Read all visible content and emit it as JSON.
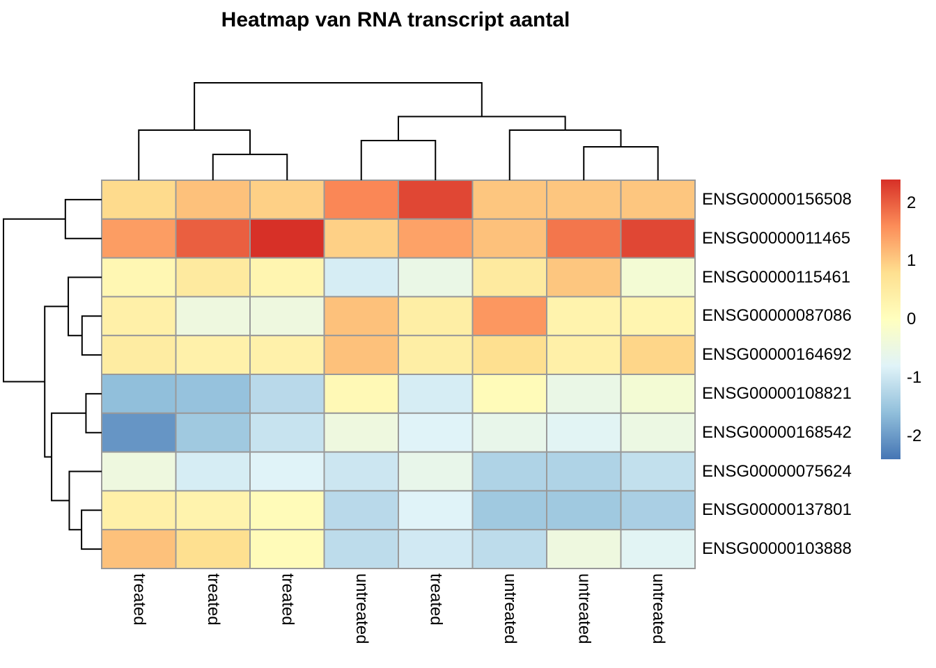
{
  "title": "Heatmap van RNA transcript aantal",
  "chart_data": {
    "type": "heatmap",
    "title": "Heatmap van RNA transcript aantal",
    "rows": [
      "ENSG00000156508",
      "ENSG00000011465",
      "ENSG00000115461",
      "ENSG00000087086",
      "ENSG00000164692",
      "ENSG00000108821",
      "ENSG00000168542",
      "ENSG00000075624",
      "ENSG00000137801",
      "ENSG00000103888"
    ],
    "columns": [
      "treated",
      "treated",
      "treated",
      "untreated",
      "treated",
      "untreated",
      "untreated",
      "untreated"
    ],
    "values": [
      [
        0.85,
        1.1,
        0.95,
        1.65,
        2.2,
        1.05,
        1.05,
        1.05
      ],
      [
        1.45,
        2.0,
        2.4,
        0.95,
        1.4,
        1.1,
        1.8,
        2.2
      ],
      [
        0.2,
        0.55,
        0.25,
        -0.9,
        -0.55,
        0.55,
        1.05,
        -0.3
      ],
      [
        0.4,
        -0.45,
        -0.45,
        1.1,
        0.45,
        1.5,
        0.3,
        0.25
      ],
      [
        0.5,
        0.35,
        0.35,
        1.1,
        0.45,
        0.8,
        0.4,
        0.9
      ],
      [
        -1.6,
        -1.55,
        -1.2,
        0.15,
        -0.9,
        0.1,
        -0.55,
        -0.3
      ],
      [
        -2.05,
        -1.45,
        -1.05,
        -0.45,
        -0.8,
        -0.6,
        -0.75,
        -0.5
      ],
      [
        -0.45,
        -0.9,
        -0.8,
        -1.0,
        -0.6,
        -1.3,
        -1.3,
        -1.1
      ],
      [
        0.4,
        0.3,
        0.1,
        -1.2,
        -0.8,
        -1.45,
        -1.45,
        -1.35
      ],
      [
        1.1,
        0.8,
        0.1,
        -1.15,
        -0.95,
        -1.15,
        -0.45,
        -0.75
      ]
    ],
    "zlim": [
      -2.4,
      2.4
    ],
    "colormap": [
      "#4575B4",
      "#91BFDB",
      "#E0F3F8",
      "#FFFFBF",
      "#FEE090",
      "#FC8D59",
      "#D73027"
    ],
    "legend_ticks": [
      "2",
      "1",
      "0",
      "-1",
      "-2"
    ],
    "legend_tick_values": [
      2,
      1,
      0,
      -1,
      -2
    ],
    "row_dendrogram": {
      "n": 10,
      "merges": [
        [
          3,
          4,
          0.2
        ],
        [
          8,
          9,
          0.205
        ],
        [
          5,
          6,
          0.16
        ],
        [
          2,
          10,
          0.34
        ],
        [
          7,
          11,
          0.33
        ],
        [
          12,
          14,
          0.51
        ],
        [
          13,
          15,
          0.58
        ],
        [
          0,
          1,
          0.37
        ],
        [
          17,
          16,
          1.0
        ]
      ]
    },
    "col_dendrogram": {
      "n": 8,
      "merges": [
        [
          1,
          2,
          0.265
        ],
        [
          6,
          7,
          0.343
        ],
        [
          3,
          4,
          0.407
        ],
        [
          0,
          8,
          0.514
        ],
        [
          5,
          9,
          0.514
        ],
        [
          10,
          12,
          0.654
        ],
        [
          11,
          13,
          1.0
        ]
      ]
    },
    "grid_line_color": "#999999",
    "dendro_line_color": "#000000",
    "legend_position": "right",
    "grid": true
  }
}
